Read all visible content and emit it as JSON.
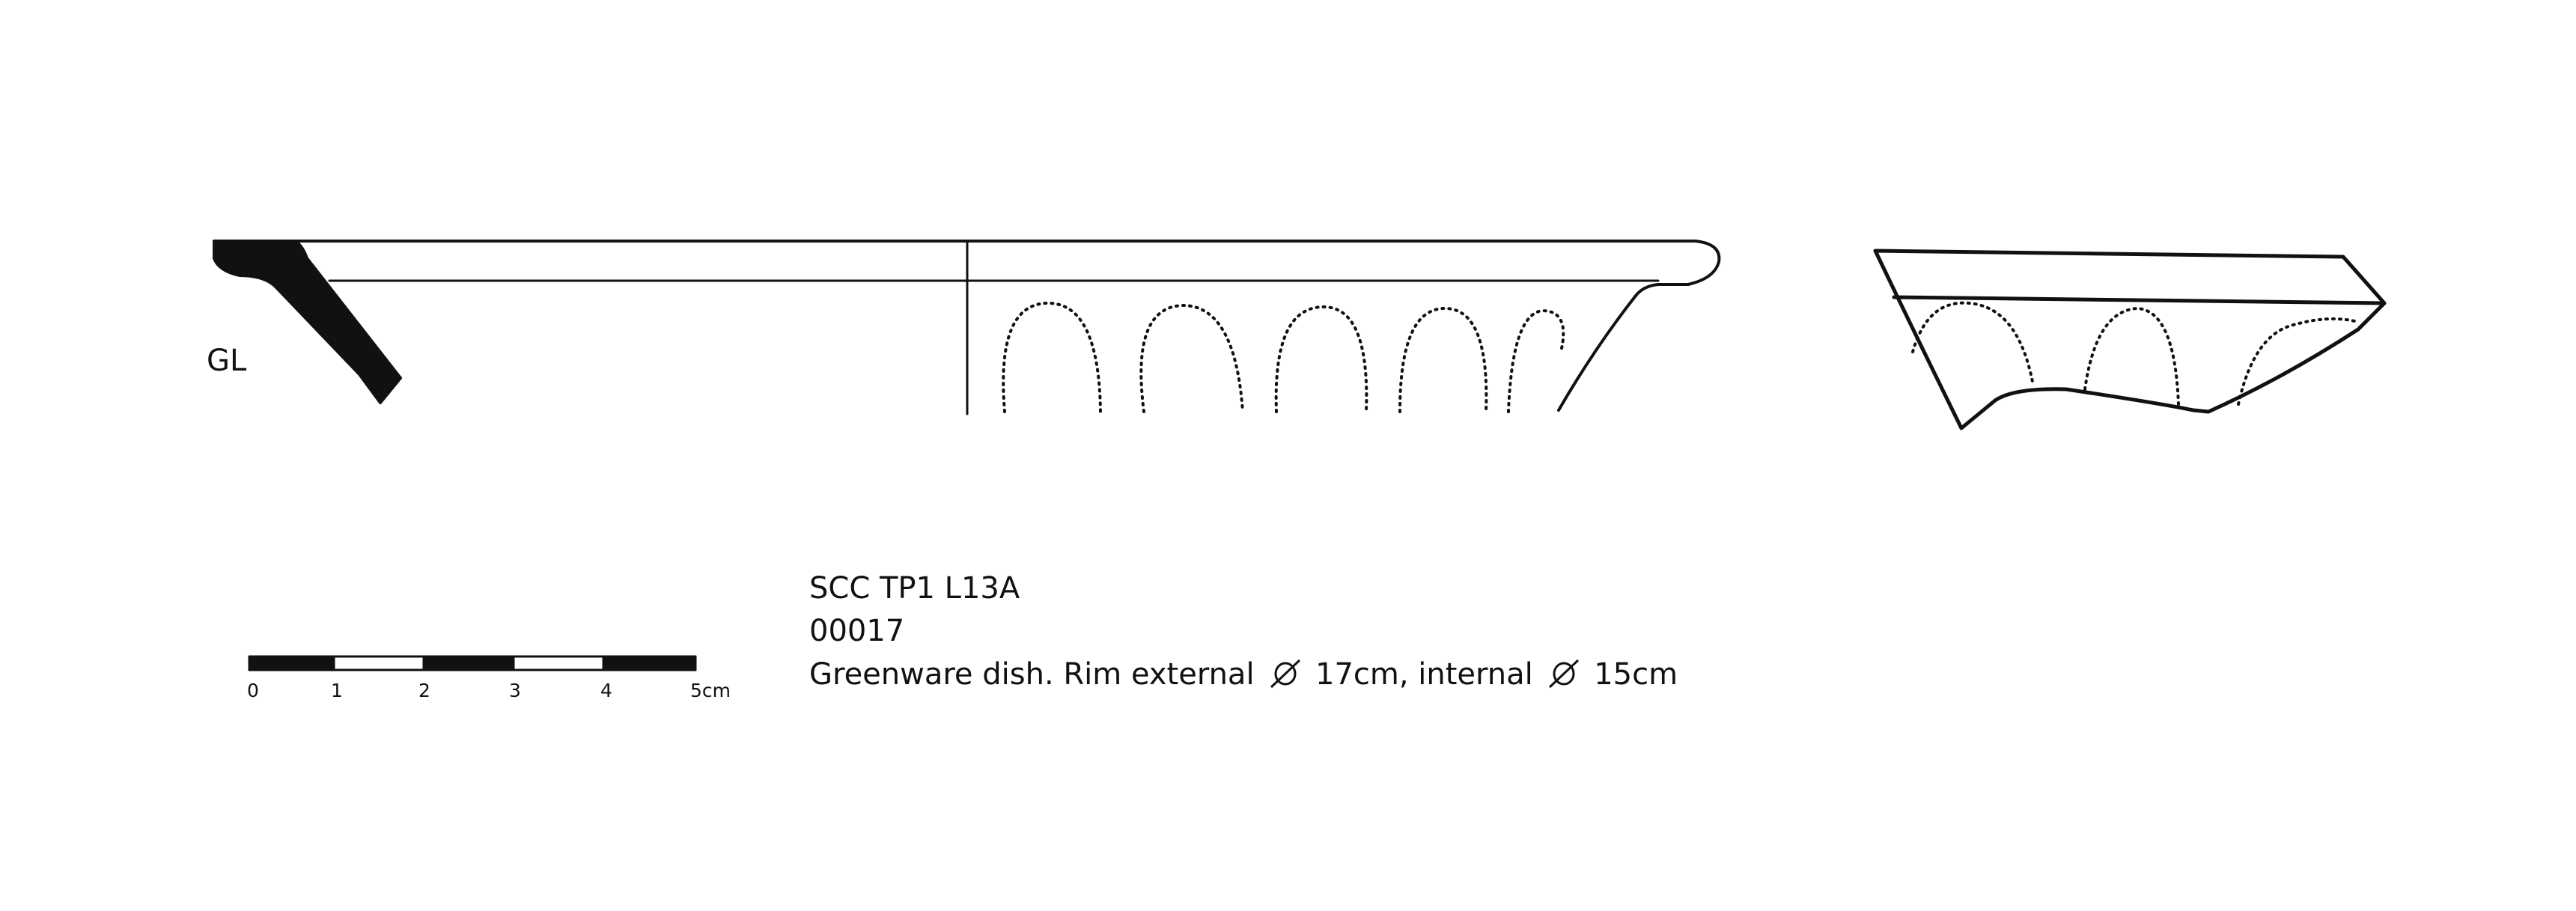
{
  "label": {
    "fabric": "GL"
  },
  "caption": {
    "context": "SCC TP1 L13A",
    "number": "00017",
    "desc_part1": "Greenware dish. Rim external",
    "desc_part2": "17cm, internal",
    "desc_part3": "15cm"
  },
  "scale_bar": {
    "ticks": [
      "0",
      "1",
      "2",
      "3",
      "4"
    ],
    "end_label": "5cm"
  },
  "icons": {
    "diameter": "diameter-symbol-icon"
  },
  "colors": {
    "ink": "#111111",
    "paper": "#ffffff"
  }
}
